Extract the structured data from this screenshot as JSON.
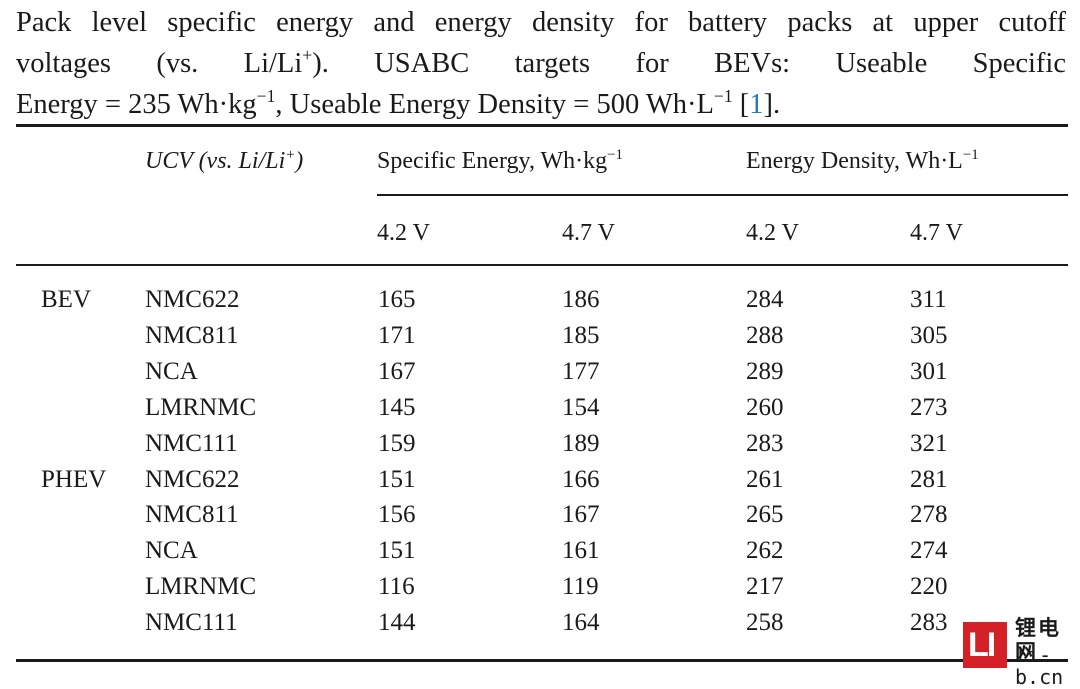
{
  "caption": {
    "line1": "Pack level specific energy and energy density for battery packs at upper cutoff",
    "line2_pre": "voltages (vs. Li/Li",
    "line2_sup": "+",
    "line2_post": "). USABC targets for BEVs: Useable Specific",
    "line3_a": "Energy = 235 Wh·kg",
    "line3_sup1": "−1",
    "line3_b": ", Useable Energy Density = 500 Wh·L",
    "line3_sup2": "−1",
    "line3_c": " [",
    "cite": "1",
    "line3_d": "]."
  },
  "table": {
    "header": {
      "ucv_label": "UCV (vs. Li/Li",
      "ucv_sup": "+",
      "ucv_close": ")",
      "specific_energy": "Specific Energy, Wh·kg",
      "specific_energy_sup": "−1",
      "energy_density": "Energy Density, Wh·L",
      "energy_density_sup": "−1",
      "v1": "4.2 V",
      "v2": "4.7 V",
      "v3": "4.2 V",
      "v4": "4.7 V"
    },
    "rows": [
      {
        "group": "BEV",
        "chem": "NMC622",
        "se42": "165",
        "se47": "186",
        "ed42": "284",
        "ed47": "311"
      },
      {
        "group": "",
        "chem": "NMC811",
        "se42": "171",
        "se47": "185",
        "ed42": "288",
        "ed47": "305"
      },
      {
        "group": "",
        "chem": "NCA",
        "se42": "167",
        "se47": "177",
        "ed42": "289",
        "ed47": "301"
      },
      {
        "group": "",
        "chem": "LMRNMC",
        "se42": "145",
        "se47": "154",
        "ed42": "260",
        "ed47": "273"
      },
      {
        "group": "",
        "chem": "NMC111",
        "se42": "159",
        "se47": "189",
        "ed42": "283",
        "ed47": "321"
      },
      {
        "group": "PHEV",
        "chem": "NMC622",
        "se42": "151",
        "se47": "166",
        "ed42": "261",
        "ed47": "281"
      },
      {
        "group": "",
        "chem": "NMC811",
        "se42": "156",
        "se47": "167",
        "ed42": "265",
        "ed47": "278"
      },
      {
        "group": "",
        "chem": "NCA",
        "se42": "151",
        "se47": "161",
        "ed42": "262",
        "ed47": "274"
      },
      {
        "group": "",
        "chem": "LMRNMC",
        "se42": "116",
        "se47": "119",
        "ed42": "217",
        "ed47": "220"
      },
      {
        "group": "",
        "chem": "NMC111",
        "se42": "144",
        "se47": "164",
        "ed42": "258",
        "ed47": "283"
      }
    ]
  },
  "watermark": {
    "mark": "LI",
    "cn_text": "锂电网",
    "url": "li-b.cn",
    "brand_color": "#d42027"
  }
}
